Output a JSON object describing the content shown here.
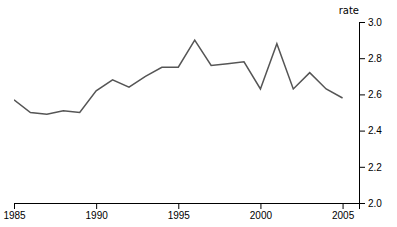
{
  "chart_data": {
    "type": "line",
    "ylabel": "rate",
    "x": [
      1985,
      1986,
      1987,
      1988,
      1989,
      1990,
      1991,
      1992,
      1993,
      1994,
      1995,
      1996,
      1997,
      1998,
      1999,
      2000,
      2001,
      2002,
      2003,
      2004,
      2005
    ],
    "y": [
      2.57,
      2.5,
      2.49,
      2.51,
      2.5,
      2.62,
      2.68,
      2.64,
      2.7,
      2.75,
      2.75,
      2.9,
      2.76,
      2.77,
      2.78,
      2.63,
      2.88,
      2.63,
      2.72,
      2.63,
      2.58
    ],
    "color": "#555555",
    "xlim": [
      1985,
      2006
    ],
    "ylim": [
      2.0,
      3.0
    ],
    "xticks": [
      1985,
      1990,
      1995,
      2000,
      2005
    ],
    "yticks": [
      {
        "value": 2.0,
        "label": "2.0"
      },
      2.2,
      2.4,
      2.6,
      2.8,
      {
        "value": 3.0,
        "label": "3.0"
      }
    ],
    "grid": false
  }
}
